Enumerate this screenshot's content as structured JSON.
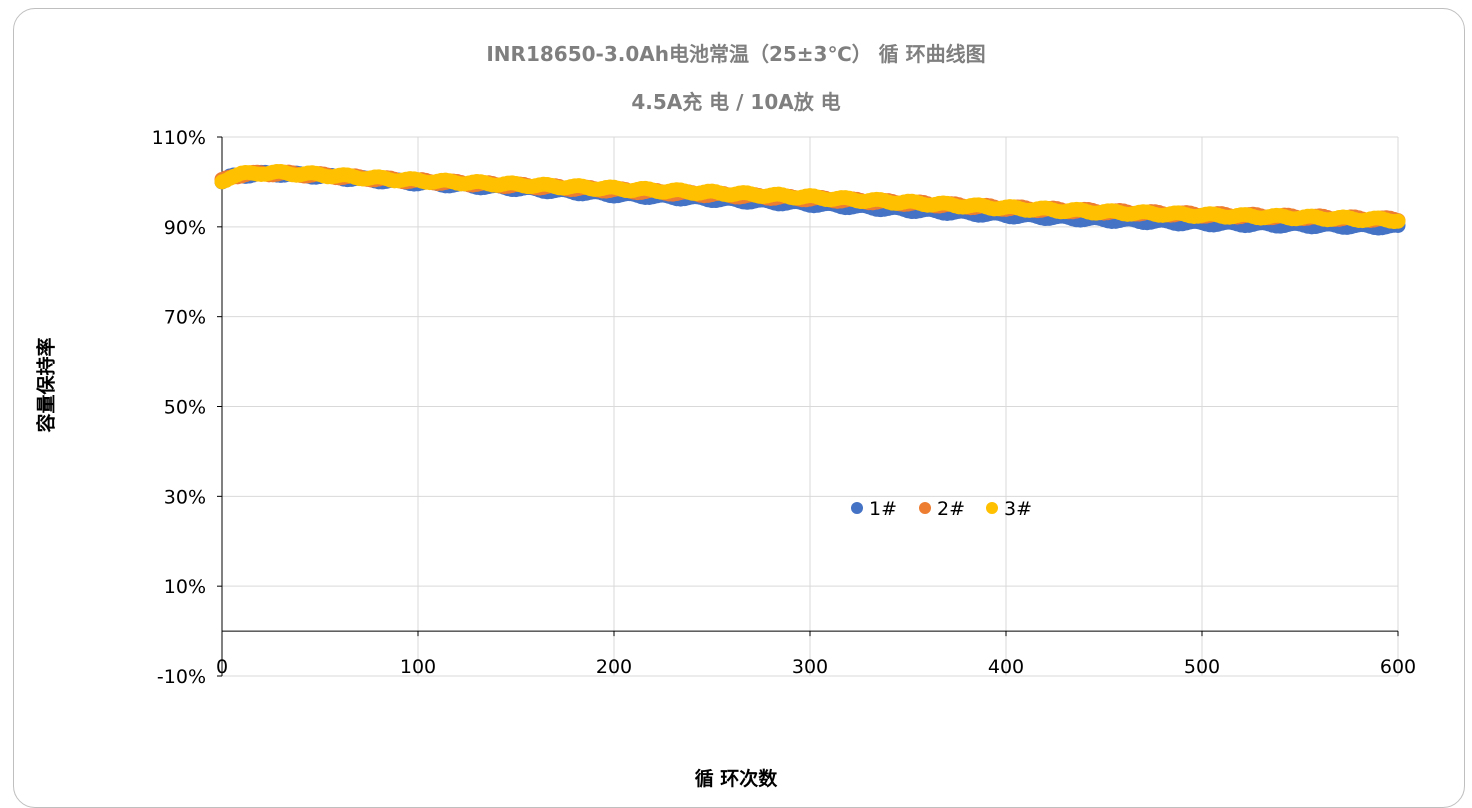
{
  "chart_data": {
    "type": "scatter",
    "title": "INR18650-3.0Ah电池常温（25±3℃） 循 环曲线图",
    "subtitle": "4.5A充 电 / 10A放 电",
    "xlabel": "循 环次数",
    "ylabel": "容量保持率",
    "xlim": [
      0,
      600
    ],
    "ylim": [
      -10,
      110
    ],
    "x_ticks": [
      "0",
      "100",
      "200",
      "300",
      "400",
      "500",
      "600"
    ],
    "y_ticks": [
      "110%",
      "90%",
      "70%",
      "50%",
      "30%",
      "10%",
      "-10%"
    ],
    "grid": true,
    "legend_position": "center-bottom",
    "series": [
      {
        "name": "1#",
        "color": "#4472C4",
        "x": [
          0,
          5,
          10,
          20,
          30,
          50,
          75,
          100,
          150,
          200,
          250,
          300,
          350,
          400,
          450,
          500,
          550,
          600
        ],
        "y": [
          100.0,
          101.2,
          101.5,
          101.8,
          101.8,
          101.3,
          100.5,
          99.8,
          98.6,
          97.2,
          96.2,
          95.1,
          93.8,
          92.6,
          91.6,
          90.8,
          90.4,
          90.0
        ]
      },
      {
        "name": "2#",
        "color": "#ED7D31",
        "x": [
          0,
          5,
          10,
          20,
          30,
          50,
          75,
          100,
          150,
          200,
          250,
          300,
          350,
          400,
          450,
          500,
          550,
          600
        ],
        "y": [
          100.2,
          101.3,
          101.6,
          101.9,
          101.9,
          101.5,
          100.8,
          100.2,
          99.2,
          98.2,
          97.2,
          96.3,
          95.3,
          94.2,
          93.4,
          92.7,
          92.2,
          91.6
        ]
      },
      {
        "name": "3#",
        "color": "#FFC000",
        "x": [
          0,
          5,
          10,
          20,
          30,
          50,
          75,
          100,
          150,
          200,
          250,
          300,
          350,
          400,
          450,
          500,
          550,
          600
        ],
        "y": [
          100.1,
          101.4,
          101.7,
          102.0,
          102.0,
          101.6,
          100.9,
          100.3,
          99.4,
          98.5,
          97.6,
          96.6,
          95.4,
          94.2,
          93.3,
          92.6,
          92.1,
          91.5
        ]
      }
    ]
  }
}
